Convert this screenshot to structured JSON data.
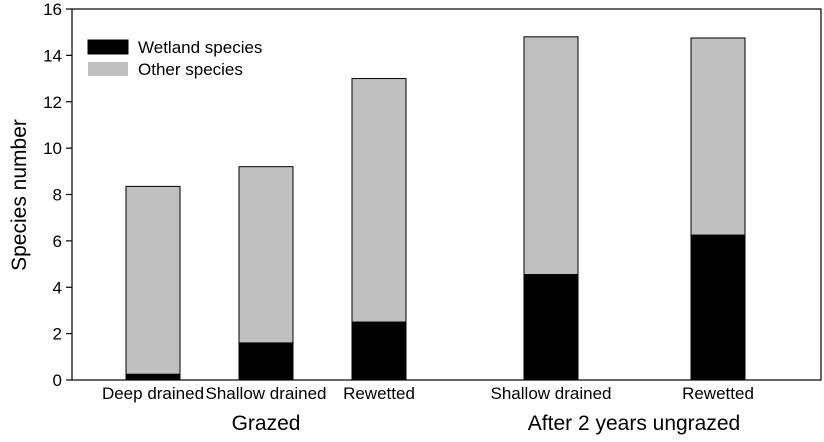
{
  "chart_data": {
    "type": "bar",
    "stacked": true,
    "categories": [
      "Deep drained",
      "Shallow drained",
      "Rewetted",
      "Shallow drained",
      "Rewetted"
    ],
    "groups": [
      {
        "label": "Grazed",
        "category_indices": [
          0,
          1,
          2
        ]
      },
      {
        "label": "After 2 years ungrazed",
        "category_indices": [
          3,
          4
        ]
      }
    ],
    "series": [
      {
        "name": "Wetland species",
        "color": "#000000",
        "values": [
          0.25,
          1.6,
          2.5,
          4.55,
          6.25
        ]
      },
      {
        "name": "Other species",
        "color": "#c0c0c0",
        "values": [
          8.1,
          7.6,
          10.5,
          10.25,
          8.5
        ]
      }
    ],
    "totals": [
      8.35,
      9.2,
      13.0,
      14.8,
      14.75
    ],
    "ylabel": "Species number",
    "ylim": [
      0,
      16
    ],
    "yticks": [
      0,
      2,
      4,
      6,
      8,
      10,
      12,
      14,
      16
    ],
    "grid": false,
    "legend_position": "top-left"
  }
}
